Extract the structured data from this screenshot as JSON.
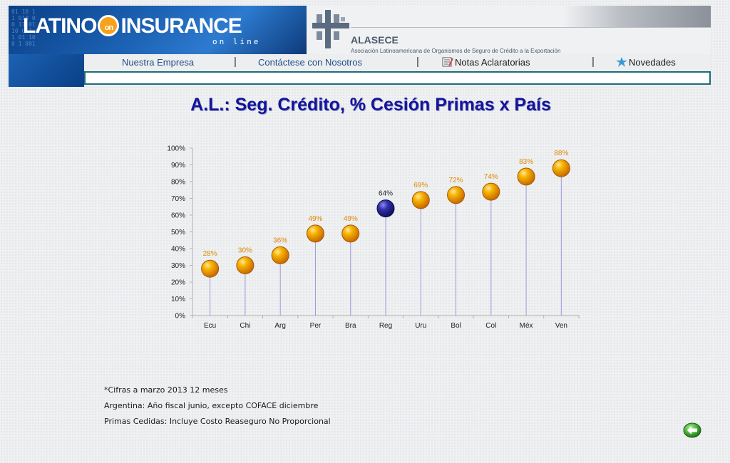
{
  "header": {
    "logo_left": "LATINO",
    "logo_on": "on",
    "logo_right": "INSURANCE",
    "logo_subtitle": "on line",
    "partner_name": "ALASECE",
    "partner_description": "Asociación Latinoamericana de Organismos de Seguro de Crédito a la Exportación"
  },
  "nav": {
    "items": [
      {
        "label": "Nuestra Empresa"
      },
      {
        "label": "Contáctese con Nosotros"
      },
      {
        "label": "Notas Aclaratorias"
      },
      {
        "label": "Novedades"
      }
    ],
    "separator": "|"
  },
  "page_title": "A.L.: Seg. Crédito, % Cesión Primas x País",
  "chart_data": {
    "type": "scatter",
    "categories": [
      "Ecu",
      "Chi",
      "Arg",
      "Per",
      "Bra",
      "Reg",
      "Uru",
      "Bol",
      "Col",
      "Méx",
      "Ven"
    ],
    "values": [
      28,
      30,
      36,
      49,
      49,
      64,
      69,
      72,
      74,
      83,
      88
    ],
    "data_labels": [
      "28%",
      "30%",
      "36%",
      "49%",
      "49%",
      "64%",
      "69%",
      "72%",
      "74%",
      "83%",
      "88%"
    ],
    "highlight": "Reg",
    "ylim": [
      0,
      100
    ],
    "y_ticks": [
      "0%",
      "10%",
      "20%",
      "30%",
      "40%",
      "50%",
      "60%",
      "70%",
      "80%",
      "90%",
      "100%"
    ],
    "colors": {
      "default": "#f5a000",
      "highlight": "#2a2a8c",
      "default_label": "#e08a00",
      "highlight_label": "#222222",
      "stem": "#9a9ad8"
    },
    "grid": false,
    "legend": "none"
  },
  "notes": [
    "*Cifras a marzo 2013 12 meses",
    "Argentina: Año fiscal junio, excepto COFACE diciembre",
    "Primas Cedidas: Incluye Costo Reaseguro No Proporcional"
  ],
  "icons": {
    "back": "back-arrow-icon"
  }
}
